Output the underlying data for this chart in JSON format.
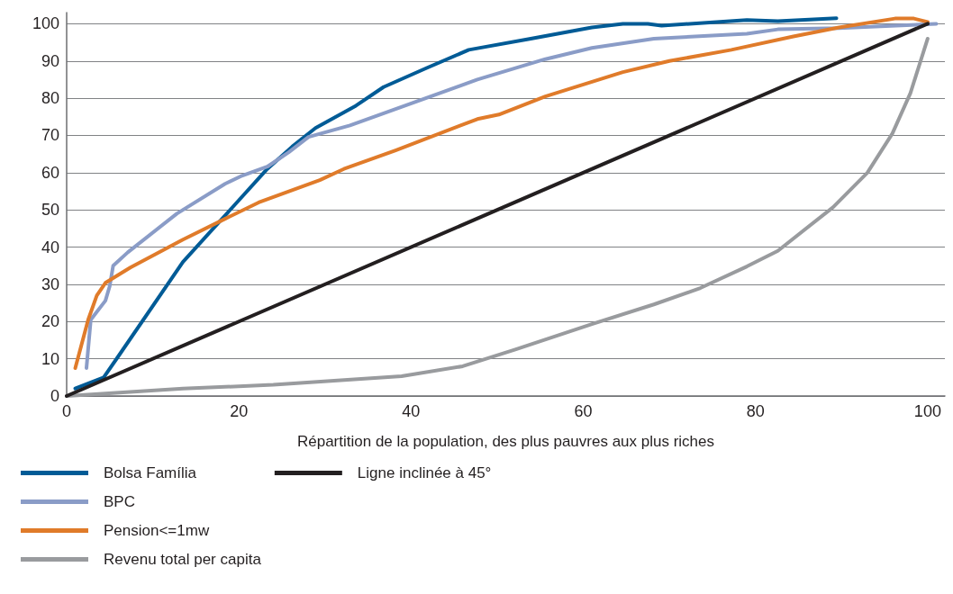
{
  "chart_data": {
    "type": "line",
    "xlabel": "Répartition de la population, des plus pauvres aux plus riches",
    "xlim": [
      0,
      102
    ],
    "xticks": [
      0,
      20,
      40,
      60,
      80,
      100
    ],
    "ylim": [
      0,
      103
    ],
    "yticks": [
      0,
      10,
      20,
      30,
      40,
      50,
      60,
      70,
      80,
      90,
      100
    ],
    "grid": "y",
    "legend": "bottom left",
    "marker": "none",
    "line_style": "solid",
    "series": [
      {
        "name": "Bolsa Família",
        "color": "#005b96",
        "x": [
          1,
          4.3,
          6.1,
          13.5,
          23.3,
          26.2,
          28.9,
          33.6,
          36.8,
          41.7,
          46.7,
          53.9,
          61,
          64.6,
          67.5,
          69.1,
          79,
          82.6,
          89.4
        ],
        "values": [
          2,
          5,
          11,
          36,
          61,
          67,
          72,
          78,
          83,
          88,
          93,
          96,
          99,
          100,
          100,
          99.5,
          101,
          100.7,
          101.5
        ]
      },
      {
        "name": "BPC",
        "color": "#8a9cc7",
        "x": [
          2.3,
          2.8,
          4.5,
          5,
          5.4,
          7.1,
          12.8,
          18.4,
          20.2,
          23.3,
          25.8,
          28.1,
          32.9,
          41.7,
          47.7,
          55.6,
          61,
          68.2,
          79,
          82.6,
          89.7,
          101
        ],
        "values": [
          7.5,
          20.5,
          25.6,
          29.5,
          35,
          38.6,
          49,
          57,
          59,
          61.6,
          65.5,
          69.6,
          72.7,
          80,
          85,
          90.5,
          93.5,
          96,
          97.3,
          98.5,
          98.8,
          100
        ]
      },
      {
        "name": "Pension<=1mw",
        "color": "#e07b2a",
        "x": [
          1,
          2.5,
          3.5,
          4.5,
          7.4,
          13.5,
          18.4,
          22.3,
          29.4,
          32.2,
          38.2,
          47.7,
          50.2,
          55.6,
          64.6,
          70,
          77.2,
          84.4,
          89.7,
          96.2,
          98.4,
          100
        ],
        "values": [
          7.5,
          20.5,
          27,
          30.4,
          34.5,
          42,
          47.6,
          52,
          58,
          61,
          66,
          74.4,
          75.6,
          80.5,
          87,
          90,
          93,
          96.6,
          99,
          101.4,
          101.4,
          100.5
        ]
      },
      {
        "name": "Revenu total per capita",
        "color": "#999b9e",
        "x": [
          0,
          13.5,
          24,
          38.9,
          46,
          52.1,
          61,
          68.2,
          73.6,
          79,
          82.6,
          89,
          93,
          95.9,
          98,
          100
        ],
        "values": [
          0,
          2,
          3,
          5.3,
          8,
          12.5,
          19.3,
          24.6,
          29,
          34.8,
          39,
          50.7,
          60,
          70.5,
          81.4,
          96
        ]
      },
      {
        "name": "Ligne inclinée à 45°",
        "color": "#231f20",
        "x": [
          0,
          100
        ],
        "values": [
          0,
          100
        ]
      }
    ]
  }
}
